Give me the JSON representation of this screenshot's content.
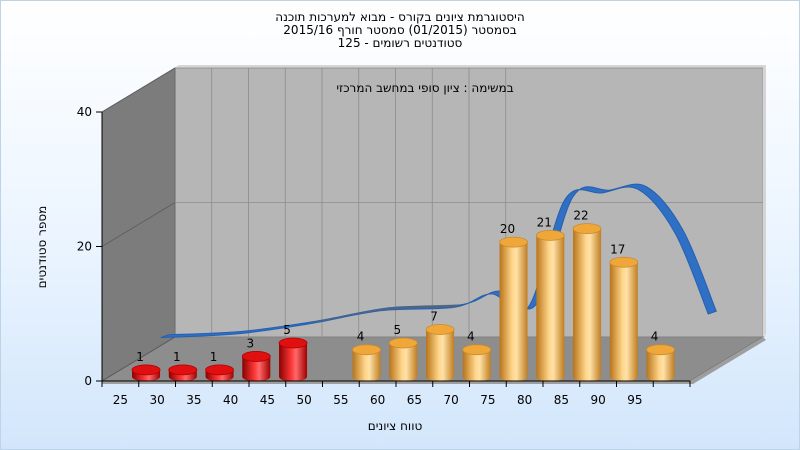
{
  "chart_data": {
    "type": "bar",
    "title_lines": [
      "היסטוגרמת ציונים בקורס - מבוא למערכות תוכנה",
      "בסמסטר  (01/2015)  סמסטר חורף 2015/16",
      "125 - סטודנטים רשומים"
    ],
    "subtitle": "במשימה : ציון סופי במחשב המרכזי",
    "xlabel": "טווח ציונים",
    "ylabel": "מספר סטודנטים",
    "categories": [
      "25",
      "30",
      "35",
      "40",
      "45",
      "50",
      "55",
      "60",
      "65",
      "70",
      "75",
      "80",
      "85",
      "90",
      "95"
    ],
    "y_ticks": [
      "0",
      "20",
      "40"
    ],
    "ylim": [
      0,
      40
    ],
    "bars": [
      {
        "x": 27.5,
        "value": 1
      },
      {
        "x": 32.5,
        "value": 1
      },
      {
        "x": 37.5,
        "value": 1
      },
      {
        "x": 42.5,
        "value": 3
      },
      {
        "x": 47.5,
        "value": 5
      },
      {
        "x": 57.5,
        "value": 4
      },
      {
        "x": 62.5,
        "value": 5
      },
      {
        "x": 67.5,
        "value": 7
      },
      {
        "x": 72.5,
        "value": 4
      },
      {
        "x": 77.5,
        "value": 20
      },
      {
        "x": 82.5,
        "value": 21
      },
      {
        "x": 87.5,
        "value": 22
      },
      {
        "x": 92.5,
        "value": 17
      },
      {
        "x": 97.5,
        "value": 4
      }
    ],
    "fail_threshold": 55,
    "trend": [
      {
        "x": 27.5,
        "y": 4.5
      },
      {
        "x": 37.5,
        "y": 5
      },
      {
        "x": 47.5,
        "y": 6.5
      },
      {
        "x": 57.5,
        "y": 8.5
      },
      {
        "x": 67.5,
        "y": 9
      },
      {
        "x": 72.5,
        "y": 11
      },
      {
        "x": 77.5,
        "y": 9
      },
      {
        "x": 82.5,
        "y": 25
      },
      {
        "x": 87.5,
        "y": 26
      },
      {
        "x": 92.5,
        "y": 26.5
      },
      {
        "x": 97.5,
        "y": 20
      },
      {
        "x": 102,
        "y": 8
      }
    ],
    "colors": {
      "fail": "#e01010",
      "pass": "#f0a73a",
      "trend": "#2f6fc4",
      "trend_shadow": "#5a6470",
      "back_wall": "#b6b6b6",
      "left_wall": "#7c7c7c",
      "floor": "#8d8d8d"
    },
    "grid": true,
    "legend": "none"
  }
}
